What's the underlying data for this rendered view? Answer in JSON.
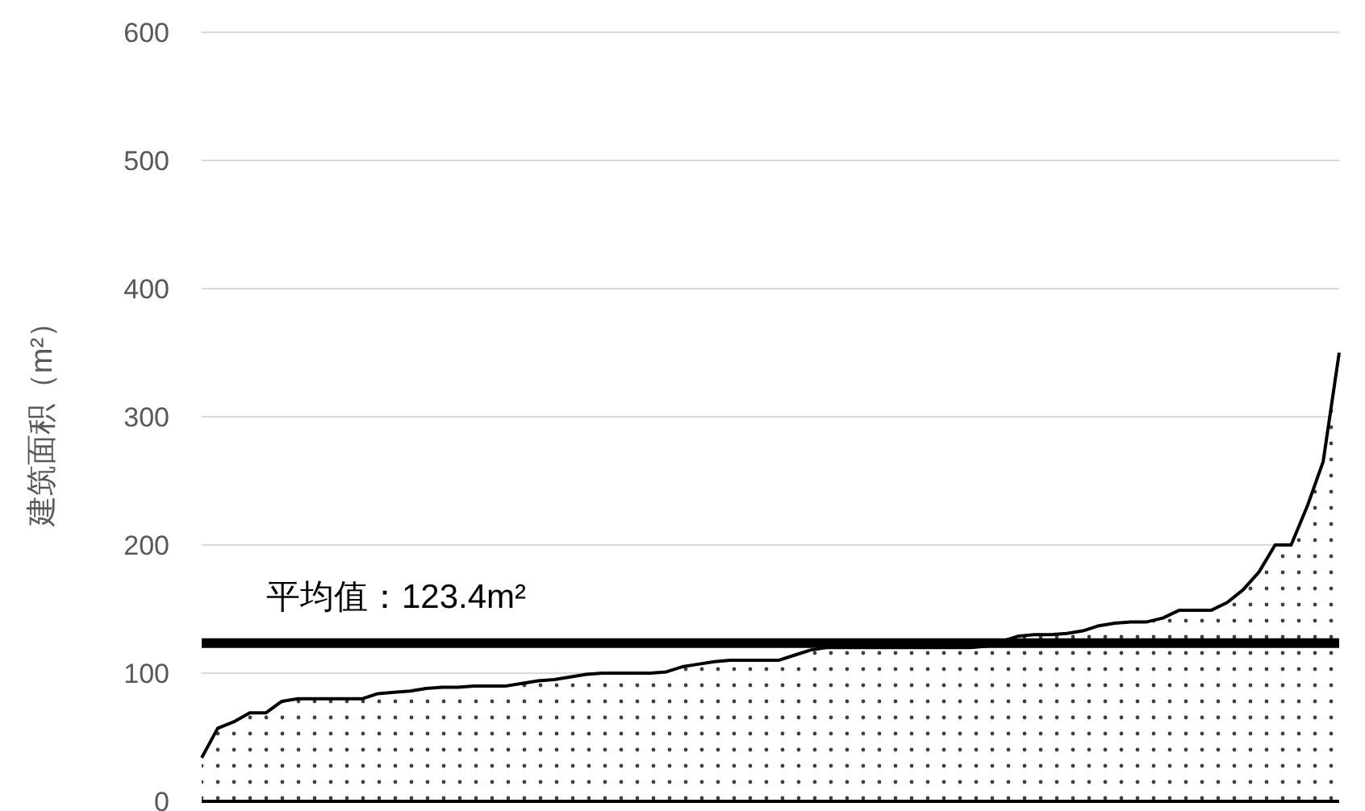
{
  "chart_data": {
    "type": "area",
    "ylabel": "建筑面积（m²）",
    "categories": [
      null,
      null,
      null,
      null,
      null,
      null,
      null,
      null,
      null,
      null,
      null,
      null,
      null,
      null,
      null,
      null,
      null,
      null,
      null,
      null,
      null,
      null,
      null,
      null,
      null,
      null,
      null,
      null,
      null,
      null,
      null,
      null,
      null,
      null,
      null,
      null,
      null,
      null,
      null,
      null,
      null,
      null,
      null,
      null,
      null,
      null,
      null,
      null,
      null,
      null,
      null,
      null,
      null,
      null,
      null,
      null,
      null,
      null,
      null,
      null,
      null,
      null,
      null,
      null,
      null,
      null,
      null,
      null,
      null,
      null,
      null,
      null
    ],
    "series": [
      {
        "color": "#000000",
        "values": [
          34,
          57,
          62,
          69,
          69,
          78,
          80,
          80,
          80,
          80,
          80,
          84,
          85,
          86,
          88,
          89,
          89,
          90,
          90,
          90,
          92,
          94,
          95,
          97,
          99,
          100,
          100,
          100,
          100,
          101,
          105,
          107,
          109,
          110,
          110,
          110,
          110,
          114,
          118,
          120,
          120,
          120,
          120,
          120,
          120,
          120,
          120,
          120,
          120,
          121,
          125,
          129,
          130,
          130,
          131,
          133,
          137,
          139,
          140,
          140,
          143,
          149,
          149,
          149,
          155,
          165,
          179,
          200,
          200,
          230,
          265,
          350
        ]
      }
    ],
    "ylim": [
      0,
      600
    ],
    "yticks": [
      0,
      100,
      200,
      300,
      400,
      500,
      600
    ],
    "grid": "y",
    "line_style": "solid",
    "ref_lines": [
      {
        "axis": "y",
        "value": 123.4,
        "label": "平均值：123.4m²",
        "color": "#000000"
      }
    ]
  }
}
